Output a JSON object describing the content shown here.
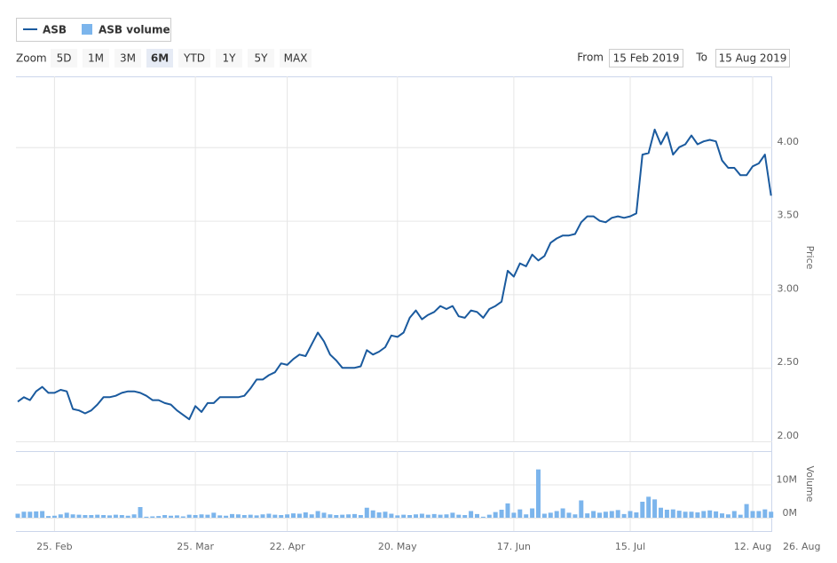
{
  "toolbar": {
    "zoom_label": "Zoom",
    "buttons": [
      "5D",
      "1M",
      "3M",
      "6M",
      "YTD",
      "1Y",
      "5Y",
      "MAX"
    ],
    "selected": "6M",
    "from_label": "From",
    "from": "15 Feb 2019",
    "to_label": "To",
    "to": "15 Aug 2019"
  },
  "chart_data": {
    "type": "line",
    "categories": [
      null,
      null,
      null,
      null,
      null,
      null,
      "25. Feb",
      null,
      null,
      null,
      null,
      null,
      null,
      null,
      null,
      null,
      null,
      null,
      null,
      null,
      null,
      null,
      null,
      null,
      null,
      null,
      null,
      null,
      null,
      "25. Mar",
      null,
      null,
      null,
      null,
      null,
      null,
      null,
      null,
      null,
      null,
      null,
      null,
      null,
      null,
      "22. Apr",
      null,
      null,
      null,
      null,
      null,
      null,
      null,
      null,
      null,
      null,
      null,
      null,
      null,
      null,
      null,
      null,
      null,
      "20. May",
      null,
      null,
      null,
      null,
      null,
      null,
      null,
      null,
      null,
      null,
      null,
      null,
      null,
      null,
      null,
      null,
      null,
      null,
      "17. Jun",
      null,
      null,
      null,
      null,
      null,
      null,
      null,
      null,
      null,
      null,
      null,
      null,
      null,
      null,
      null,
      null,
      null,
      null,
      "15. Jul",
      null,
      null,
      null,
      null,
      null,
      null,
      null,
      null,
      null,
      null,
      null,
      null,
      null,
      null,
      null,
      null,
      null,
      null,
      null,
      "12. Aug",
      null,
      null,
      null,
      null,
      null,
      null,
      null,
      "26. Aug"
    ],
    "series": [
      {
        "name": "ASB",
        "color": "#1a5a9e",
        "values": [
          2.27,
          2.3,
          2.28,
          2.34,
          2.37,
          2.33,
          2.33,
          2.35,
          2.34,
          2.22,
          2.21,
          2.19,
          2.21,
          2.25,
          2.3,
          2.3,
          2.31,
          2.33,
          2.34,
          2.34,
          2.33,
          2.31,
          2.28,
          2.28,
          2.26,
          2.25,
          2.21,
          2.18,
          2.15,
          2.24,
          2.2,
          2.26,
          2.26,
          2.3,
          2.3,
          2.3,
          2.3,
          2.31,
          2.36,
          2.42,
          2.42,
          2.45,
          2.47,
          2.53,
          2.52,
          2.56,
          2.59,
          2.58,
          2.66,
          2.74,
          2.68,
          2.59,
          2.55,
          2.5,
          2.5,
          2.5,
          2.51,
          2.62,
          2.59,
          2.61,
          2.64,
          2.72,
          2.71,
          2.74,
          2.84,
          2.89,
          2.83,
          2.86,
          2.88,
          2.92,
          2.9,
          2.92,
          2.85,
          2.84,
          2.89,
          2.88,
          2.84,
          2.9,
          2.92,
          2.95,
          3.16,
          3.12,
          3.21,
          3.19,
          3.27,
          3.23,
          3.26,
          3.35,
          3.38,
          3.4,
          3.4,
          3.41,
          3.49,
          3.53,
          3.53,
          3.5,
          3.49,
          3.52,
          3.53,
          3.52,
          3.53,
          3.55,
          3.95,
          3.96,
          4.12,
          4.02,
          4.1,
          3.95,
          4.0,
          4.02,
          4.08,
          4.02,
          4.04,
          4.05,
          4.04,
          3.91,
          3.86,
          3.86,
          3.81,
          3.81,
          3.87,
          3.89,
          3.95,
          3.67,
          null,
          null,
          null,
          null,
          null
        ]
      },
      {
        "name": "ASB volume",
        "color": "#7cb5ec",
        "type": "bar",
        "axis": "y2",
        "values": [
          1.2,
          1.8,
          1.8,
          1.9,
          2.0,
          0.5,
          0.6,
          1.0,
          1.5,
          1.0,
          0.9,
          0.8,
          0.8,
          0.9,
          0.8,
          0.7,
          0.9,
          0.8,
          0.6,
          1.0,
          3.2,
          0.3,
          0.4,
          0.5,
          0.8,
          0.6,
          0.7,
          0.4,
          0.9,
          0.8,
          1.0,
          0.9,
          1.5,
          0.7,
          0.6,
          1.1,
          1.0,
          0.8,
          0.9,
          0.7,
          1.0,
          1.2,
          0.9,
          0.8,
          1.0,
          1.3,
          1.2,
          1.6,
          1.0,
          2.0,
          1.5,
          1.0,
          0.8,
          0.9,
          1.0,
          1.1,
          0.8,
          3.0,
          2.2,
          1.6,
          1.8,
          1.2,
          0.7,
          0.9,
          0.8,
          1.0,
          1.2,
          0.9,
          1.1,
          0.9,
          1.0,
          1.5,
          0.9,
          0.8,
          2.0,
          1.1,
          0.3,
          0.9,
          1.7,
          2.4,
          4.3,
          1.5,
          2.5,
          1.0,
          2.8,
          14.5,
          1.2,
          1.5,
          2.0,
          2.8,
          1.5,
          1.0,
          5.2,
          1.3,
          2.0,
          1.5,
          1.8,
          2.0,
          2.3,
          1.1,
          2.0,
          1.6,
          4.8,
          6.3,
          5.5,
          3.0,
          2.4,
          2.5,
          2.1,
          1.8,
          1.8,
          1.6,
          2.0,
          2.2,
          1.9,
          1.3,
          1.0,
          2.0,
          0.9,
          4.1,
          2.0,
          2.0,
          2.5,
          1.8,
          null,
          null,
          null,
          null,
          null
        ]
      }
    ],
    "ylabel": "Price",
    "ylim": [
      2,
      4.5
    ],
    "yticks": [
      {
        "value": 2,
        "label": "2.00"
      },
      {
        "value": 2.5,
        "label": "2.50"
      },
      {
        "value": 3,
        "label": "3.00"
      },
      {
        "value": 3.5,
        "label": "3.50"
      },
      {
        "value": 4,
        "label": "4.00"
      }
    ],
    "y2label": "Volume",
    "y2lim": [
      -4,
      20
    ],
    "y2ticks": [
      {
        "value": 0,
        "label": "0M"
      },
      {
        "value": 10,
        "label": "10M"
      }
    ],
    "grid": true
  }
}
